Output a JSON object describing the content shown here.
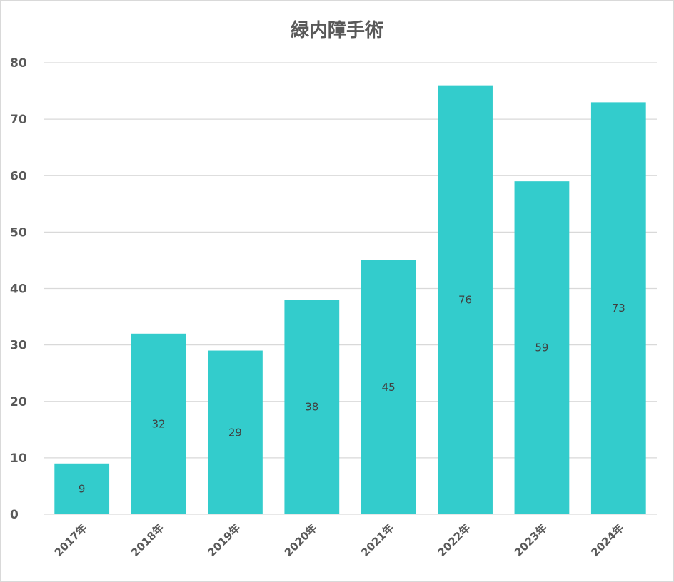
{
  "chart_data": {
    "type": "bar",
    "title": "緑内障手術",
    "xlabel": "",
    "ylabel": "",
    "categories": [
      "2017年",
      "2018年",
      "2019年",
      "2020年",
      "2021年",
      "2022年",
      "2023年",
      "2024年"
    ],
    "values": [
      9,
      32,
      29,
      38,
      45,
      76,
      59,
      73
    ],
    "ylim": [
      0,
      80
    ],
    "yticks": [
      0,
      10,
      20,
      30,
      40,
      50,
      60,
      70,
      80
    ],
    "grid": true,
    "legend": "none",
    "data_labels": true,
    "bar_color": "#33CCCC"
  }
}
